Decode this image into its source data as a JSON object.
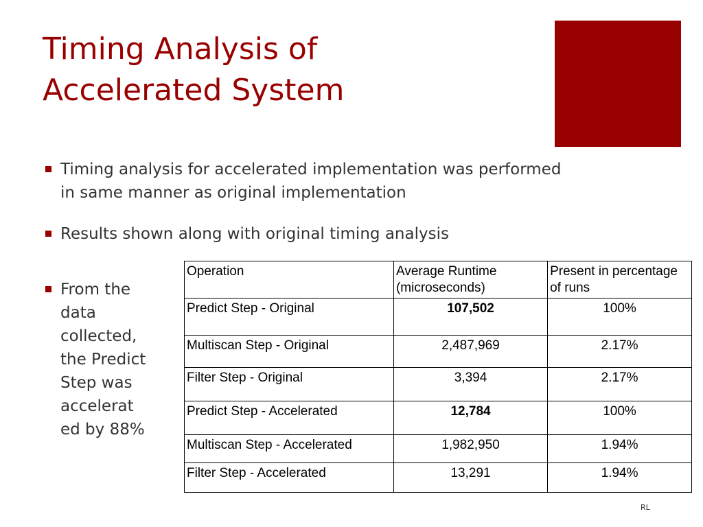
{
  "slide": {
    "title_lines": [
      "Timing Analysis of",
      "Accelerated System"
    ],
    "accent_color": "#990000",
    "bullets": [
      {
        "lines": [
          "Timing analysis for accelerated implementation was performed",
          "in same manner as original implementation"
        ]
      },
      {
        "text": "Results shown along with original timing analysis"
      },
      {
        "lines": [
          "From the",
          "data",
          "collected,",
          "the Predict",
          "Step was",
          "accelerat",
          "ed by 88%"
        ]
      }
    ],
    "footer": "RL"
  },
  "table": {
    "headers": [
      "Operation",
      "Average Runtime (microseconds)",
      "Present in percentage of runs"
    ],
    "rows": [
      {
        "operation": "Predict Step - Original",
        "runtime": "107,502",
        "percent": "100%"
      },
      {
        "operation": "Multiscan Step - Original",
        "runtime": "2,487,969",
        "percent": "2.17%"
      },
      {
        "operation": "Filter Step - Original",
        "runtime": "3,394",
        "percent": "2.17%"
      },
      {
        "operation": "Predict Step - Accelerated",
        "runtime": "12,784",
        "percent": "100%"
      },
      {
        "operation": "Multiscan Step - Accelerated",
        "runtime": "1,982,950",
        "percent": "1.94%"
      },
      {
        "operation": "Filter Step - Accelerated",
        "runtime": "13,291",
        "percent": "1.94%"
      }
    ]
  }
}
